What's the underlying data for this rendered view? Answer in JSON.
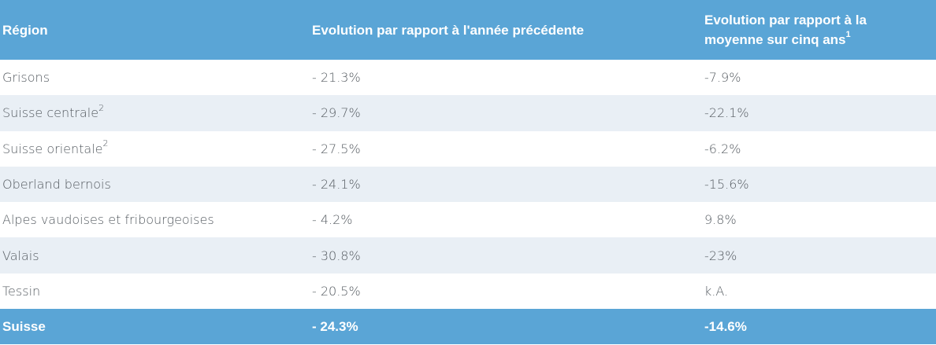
{
  "table": {
    "headers": [
      {
        "label": "Région",
        "sup": ""
      },
      {
        "label": "Evolution par rapport à l'année précédente",
        "sup": ""
      },
      {
        "label": "Evolution par rapport à la moyenne sur cinq ans",
        "sup": "1"
      }
    ],
    "rows": [
      {
        "region": "Grisons",
        "sup": "",
        "prev_year": "- 21.3%",
        "five_year": "-7.9%"
      },
      {
        "region": "Suisse centrale",
        "sup": "2",
        "prev_year": "- 29.7%",
        "five_year": "-22.1%"
      },
      {
        "region": "Suisse orientale",
        "sup": "2",
        "prev_year": "- 27.5%",
        "five_year": "-6.2%"
      },
      {
        "region": "Oberland bernois",
        "sup": "",
        "prev_year": "- 24.1%",
        "five_year": "-15.6%"
      },
      {
        "region": "Alpes vaudoises et fribourgeoises",
        "sup": "",
        "prev_year": "- 4.2%",
        "five_year": "9.8%"
      },
      {
        "region": "Valais",
        "sup": "",
        "prev_year": "- 30.8%",
        "five_year": "-23%"
      },
      {
        "region": "Tessin",
        "sup": "",
        "prev_year": "- 20.5%",
        "five_year": "k.A."
      }
    ],
    "total": {
      "region": "Suisse",
      "prev_year": "- 24.3%",
      "five_year": "-14.6%"
    }
  },
  "colors": {
    "header_bg": "#5aa5d6",
    "stripe_bg": "#e9eff5",
    "text": "#555b61"
  }
}
